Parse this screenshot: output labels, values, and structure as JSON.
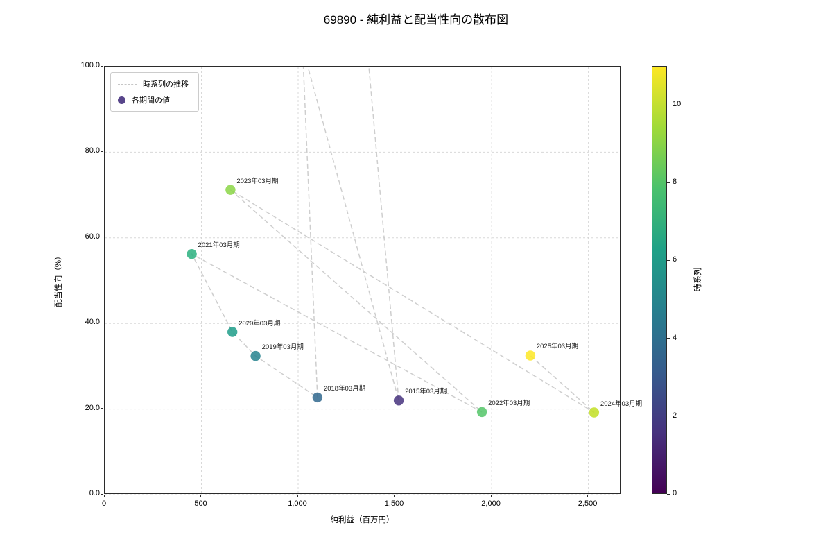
{
  "title": "69890 - 純利益と配当性向の散布図",
  "axes": {
    "x_label": "純利益（百万円）",
    "y_label": "配当性向（%）",
    "x_tick_labels": [
      "0",
      "500",
      "1,000",
      "1,500",
      "2,000",
      "2,500"
    ],
    "x_tick_values": [
      0,
      500,
      1000,
      1500,
      2000,
      2500
    ],
    "y_tick_labels": [
      "0.0",
      "20.0",
      "40.0",
      "60.0",
      "80.0",
      "100.0"
    ],
    "y_tick_values": [
      0,
      20,
      40,
      60,
      80,
      100
    ]
  },
  "legend": {
    "trail_label": "時系列の推移",
    "point_label": "各期間の値",
    "trail_color": "#c6c6c6",
    "point_color": "#46327e"
  },
  "colorbar": {
    "label": "時系列",
    "tick_values": [
      0,
      2,
      4,
      6,
      8,
      10
    ],
    "range": [
      0,
      11
    ],
    "gradient": [
      "#440154",
      "#46327e",
      "#365c8d",
      "#277f8e",
      "#1fa187",
      "#4ac16d",
      "#a0da39",
      "#fde725"
    ]
  },
  "chart_data": {
    "type": "scatter",
    "title": "69890 - 純利益と配当性向の散布図",
    "xlabel": "純利益（百万円）",
    "ylabel": "配当性向（%）",
    "xlim": [
      0,
      2670
    ],
    "ylim": [
      0,
      100
    ],
    "grid": true,
    "points": [
      {
        "label": "2015年03月期",
        "x": 1520,
        "y": 22.0,
        "t": 1,
        "color": "#46327e"
      },
      {
        "label": "2018年03月期",
        "x": 1100,
        "y": 22.7,
        "t": 4,
        "color": "#31688e"
      },
      {
        "label": "2019年03月期",
        "x": 780,
        "y": 32.4,
        "t": 5,
        "color": "#26828e"
      },
      {
        "label": "2020年03月期",
        "x": 660,
        "y": 38.0,
        "t": 6,
        "color": "#1f9e89"
      },
      {
        "label": "2021年03月期",
        "x": 450,
        "y": 56.2,
        "t": 7,
        "color": "#2ab07f"
      },
      {
        "label": "2022年03月期",
        "x": 1950,
        "y": 19.3,
        "t": 8,
        "color": "#54c568"
      },
      {
        "label": "2023年03月期",
        "x": 650,
        "y": 71.2,
        "t": 9,
        "color": "#8bd646"
      },
      {
        "label": "2024年03月期",
        "x": 2530,
        "y": 19.2,
        "t": 10,
        "color": "#c2df23"
      },
      {
        "label": "2025年03月期",
        "x": 2200,
        "y": 32.5,
        "t": 11,
        "color": "#fde725"
      }
    ],
    "trail": [
      {
        "x": 1310,
        "y": 128,
        "offscreen": true
      },
      {
        "x": 1520,
        "y": 22.0
      },
      {
        "x": 640,
        "y": 168,
        "offscreen": true
      },
      {
        "x": 1010,
        "y": 118,
        "offscreen": true
      },
      {
        "x": 1100,
        "y": 22.7
      },
      {
        "x": 780,
        "y": 32.4
      },
      {
        "x": 660,
        "y": 38.0
      },
      {
        "x": 450,
        "y": 56.2
      },
      {
        "x": 1950,
        "y": 19.3
      },
      {
        "x": 650,
        "y": 71.2
      },
      {
        "x": 2530,
        "y": 19.2
      },
      {
        "x": 2200,
        "y": 32.5
      }
    ]
  }
}
